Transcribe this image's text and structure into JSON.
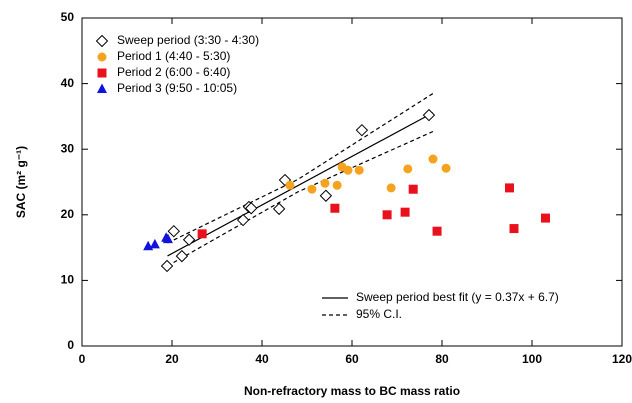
{
  "chart_data": {
    "type": "scatter",
    "xlabel": "Non-refractory mass to BC mass ratio",
    "ylabel": "SAC (m² g⁻¹)",
    "xlim": [
      0,
      120
    ],
    "ylim": [
      0,
      50
    ],
    "xticks": [
      0,
      20,
      40,
      60,
      80,
      100,
      120
    ],
    "yticks": [
      0,
      10,
      20,
      30,
      40,
      50
    ],
    "series": [
      {
        "name": "Sweep period (3:30 - 4:30)",
        "color": "#000000",
        "marker": "diamond",
        "filled": false,
        "x": [
          18.9,
          22.2,
          20.4,
          23.8,
          35.8,
          37.1,
          37.6,
          43.8,
          45.1,
          54.2,
          62.2,
          77.1
        ],
        "values": [
          12.2,
          13.7,
          17.5,
          16.2,
          19.2,
          21.2,
          21.0,
          20.9,
          25.3,
          22.9,
          32.9,
          35.2
        ]
      },
      {
        "name": "Period 1 (4:40 - 5:30)",
        "color": "#f5a21f",
        "marker": "circle",
        "filled": true,
        "x": [
          46.2,
          51.1,
          54.0,
          56.7,
          57.8,
          59.1,
          61.6,
          68.7,
          72.4,
          78.0,
          80.9
        ],
        "values": [
          24.5,
          23.9,
          24.8,
          24.5,
          27.3,
          26.8,
          26.8,
          24.1,
          27.0,
          28.5,
          27.1
        ]
      },
      {
        "name": "Period 2 (6:00 - 6:40)",
        "color": "#e8111c",
        "marker": "square",
        "filled": true,
        "x": [
          26.7,
          56.2,
          67.8,
          71.8,
          73.6,
          78.9,
          95.0,
          96.0,
          103.0
        ],
        "values": [
          17.1,
          21.0,
          20.0,
          20.4,
          23.9,
          17.5,
          24.1,
          17.9,
          19.5
        ]
      },
      {
        "name": "Period 3 (9:50 - 10:05)",
        "color": "#1212dd",
        "marker": "triangle",
        "filled": true,
        "x": [
          14.7,
          16.2,
          18.7,
          19.1
        ],
        "values": [
          15.2,
          15.5,
          16.5,
          16.3
        ]
      }
    ],
    "lines": [
      {
        "name": "Sweep period best fit (y = 0.37x + 6.7)",
        "dash": false,
        "x": [
          19,
          78
        ],
        "values": [
          13.73,
          35.56
        ]
      },
      {
        "name": "95% C.I.",
        "dash": true,
        "x": [
          19,
          48,
          78
        ],
        "values": [
          15.7,
          25.4,
          38.5
        ]
      },
      {
        "dash": true,
        "x": [
          19,
          48,
          78
        ],
        "values": [
          12.2,
          23.5,
          32.7
        ]
      }
    ]
  }
}
